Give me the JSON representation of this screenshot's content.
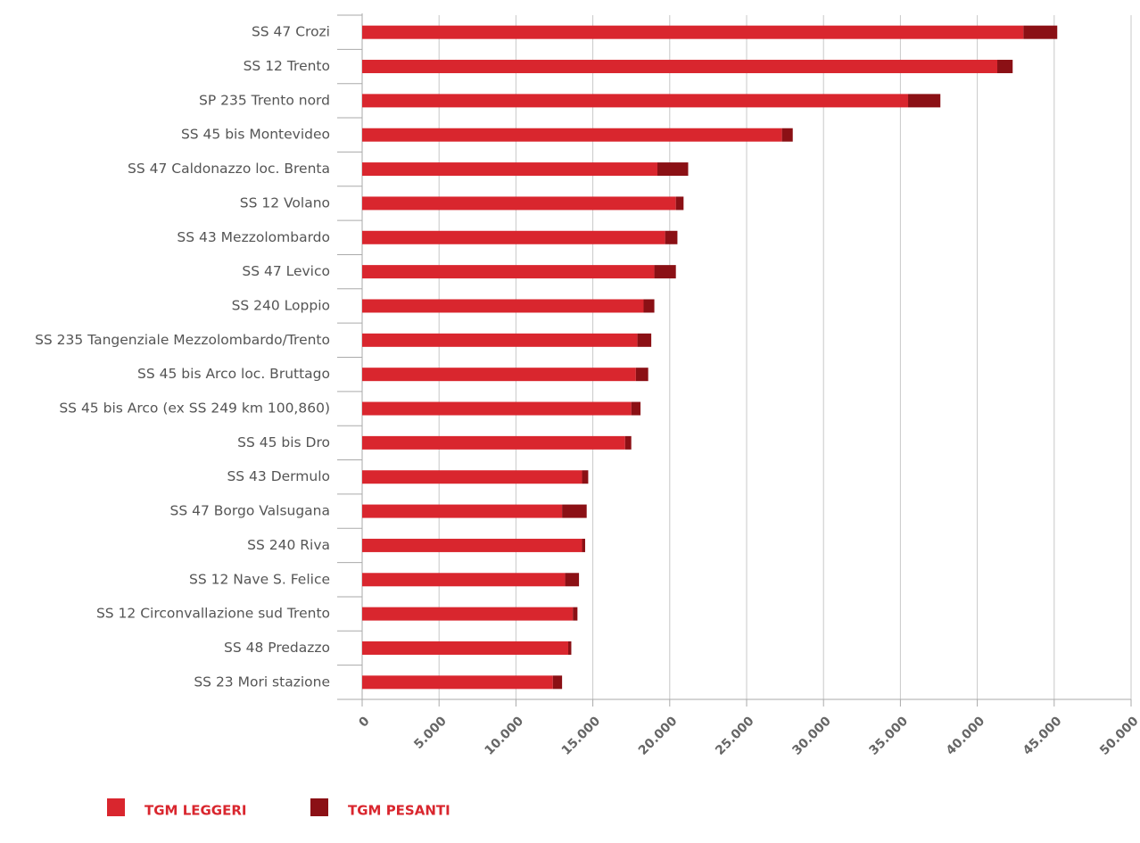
{
  "chart_data": {
    "type": "stacked_bar_horizontal",
    "categories": [
      "SS 47 Crozi",
      "SS 12 Trento",
      "SP 235 Trento nord",
      "SS 45 bis Montevideo",
      "SS 47 Caldonazzo loc. Brenta",
      "SS 12 Volano",
      "SS 43 Mezzolombardo",
      "SS 47 Levico",
      "SS 240 Loppio",
      "SS 235 Tangenziale Mezzolombardo/Trento",
      "SS 45 bis Arco loc. Bruttago",
      "SS 45 bis Arco (ex SS 249 km 100,860)",
      "SS 45 bis Dro",
      "SS 43 Dermulo",
      "SS 47 Borgo Valsugana",
      "SS 240 Riva",
      "SS 12 Nave S. Felice",
      "SS 12 Circonvallazione sud Trento",
      "SS 48 Predazzo",
      "SS 23 Mori stazione"
    ],
    "series": [
      {
        "name": "TGM LEGGERI",
        "color": "#d9262e",
        "values": [
          43000,
          41300,
          35500,
          27300,
          19200,
          20400,
          19700,
          19000,
          18300,
          17900,
          17800,
          17500,
          17100,
          14300,
          13000,
          14300,
          13200,
          13700,
          13400,
          12400
        ]
      },
      {
        "name": "TGM PESANTI",
        "color": "#8b1015",
        "values": [
          2200,
          1000,
          2100,
          700,
          2000,
          500,
          800,
          1400,
          700,
          900,
          800,
          600,
          400,
          400,
          1600,
          200,
          900,
          300,
          200,
          600
        ]
      }
    ],
    "xlim": [
      0,
      50000
    ],
    "xticks": [
      0,
      {
        "value": 5000,
        "label": "5.000"
      },
      {
        "value": 10000,
        "label": "10.000"
      },
      {
        "value": 15000,
        "label": "15.000"
      },
      {
        "value": 20000,
        "label": "20.000"
      },
      {
        "value": 25000,
        "label": "25.000"
      },
      {
        "value": 30000,
        "label": "30.000"
      },
      {
        "value": 35000,
        "label": "35.000"
      },
      {
        "value": 40000,
        "label": "40.000"
      },
      {
        "value": 45000,
        "label": "45.000"
      },
      {
        "value": 50000,
        "label": "50.000"
      }
    ],
    "grid": true,
    "legend": "bottom"
  }
}
